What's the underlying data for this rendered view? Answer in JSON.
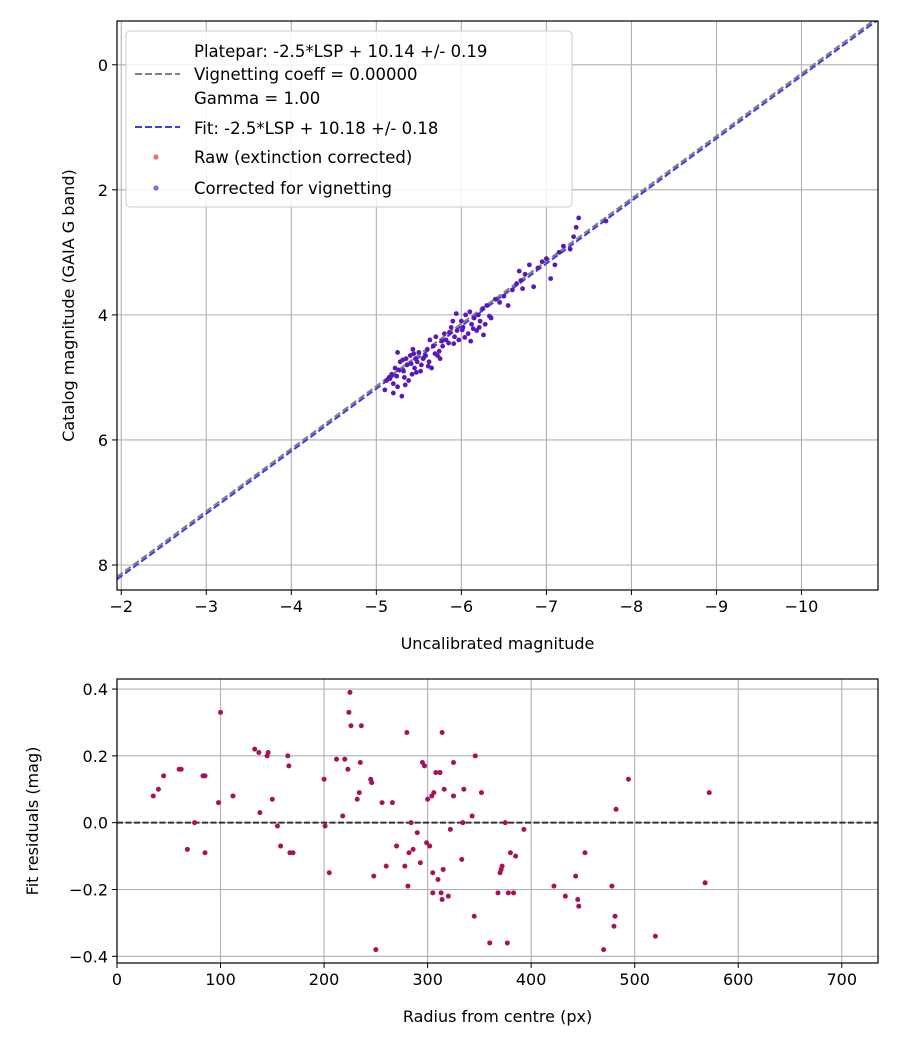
{
  "chart_data": [
    {
      "type": "scatter",
      "xlabel": "Uncalibrated magnitude",
      "ylabel": "Catalog magnitude (GAIA G band)",
      "xlim": [
        -1.95,
        -10.9
      ],
      "ylim": [
        8.4,
        -0.7
      ],
      "x_inverted": true,
      "y_inverted": true,
      "grid": true,
      "legend_position": "top-left",
      "xticks": [
        -2,
        -3,
        -4,
        -5,
        -6,
        -7,
        -8,
        -9,
        -10
      ],
      "xtick_labels": [
        "−2",
        "−3",
        "−4",
        "−5",
        "−6",
        "−7",
        "−8",
        "−9",
        "−10"
      ],
      "yticks": [
        0,
        2,
        4,
        6,
        8
      ],
      "ytick_labels": [
        "0",
        "2",
        "4",
        "6",
        "8"
      ],
      "lines": [
        {
          "name": "Platepar: -2.5*LSP + 10.14 +/- 0.19",
          "extra_legend_lines": [
            "Vignetting coeff = 0.00000",
            "Gamma = 1.00"
          ],
          "style": "dashed",
          "color": "#808080",
          "slope": 1.0,
          "intercept": 10.14
        },
        {
          "name": "Fit: -2.5*LSP + 10.18 +/- 0.18",
          "style": "dashed",
          "color": "#3c3cf0",
          "slope": 1.0,
          "intercept": 10.18
        }
      ],
      "series": [
        {
          "name": "Raw (extinction corrected)",
          "color": "#f07070",
          "points": []
        },
        {
          "name": "Corrected for vignetting",
          "color": "#7070f0",
          "overlap_color": "#5a18b8",
          "points": [
            [
              -5.1,
              5.2
            ],
            [
              -5.12,
              5.05
            ],
            [
              -5.15,
              5.0
            ],
            [
              -5.18,
              4.95
            ],
            [
              -5.2,
              5.1
            ],
            [
              -5.22,
              4.85
            ],
            [
              -5.25,
              5.15
            ],
            [
              -5.25,
              4.6
            ],
            [
              -5.28,
              4.75
            ],
            [
              -5.3,
              5.3
            ],
            [
              -5.32,
              4.9
            ],
            [
              -5.33,
              5.0
            ],
            [
              -5.35,
              4.7
            ],
            [
              -5.36,
              4.8
            ],
            [
              -5.38,
              5.05
            ],
            [
              -5.4,
              4.65
            ],
            [
              -5.42,
              4.95
            ],
            [
              -5.43,
              4.55
            ],
            [
              -5.45,
              4.85
            ],
            [
              -5.46,
              4.7
            ],
            [
              -5.48,
              4.75
            ],
            [
              -5.5,
              4.6
            ],
            [
              -5.52,
              4.9
            ],
            [
              -5.53,
              4.8
            ],
            [
              -5.55,
              4.7
            ],
            [
              -5.58,
              4.65
            ],
            [
              -5.6,
              4.55
            ],
            [
              -5.62,
              4.75
            ],
            [
              -5.63,
              4.4
            ],
            [
              -5.65,
              4.85
            ],
            [
              -5.67,
              4.5
            ],
            [
              -5.7,
              4.35
            ],
            [
              -5.72,
              4.65
            ],
            [
              -5.75,
              4.7
            ],
            [
              -5.78,
              4.5
            ],
            [
              -5.8,
              4.3
            ],
            [
              -5.82,
              4.4
            ],
            [
              -5.85,
              4.45
            ],
            [
              -5.88,
              4.2
            ],
            [
              -5.9,
              4.1
            ],
            [
              -5.92,
              4.35
            ],
            [
              -5.95,
              4.25
            ],
            [
              -5.97,
              4.4
            ],
            [
              -6.0,
              4.1
            ],
            [
              -6.02,
              4.2
            ],
            [
              -6.05,
              4.0
            ],
            [
              -6.08,
              4.3
            ],
            [
              -6.1,
              3.95
            ],
            [
              -6.12,
              4.15
            ],
            [
              -6.15,
              4.05
            ],
            [
              -6.18,
              4.25
            ],
            [
              -6.2,
              4.0
            ],
            [
              -6.22,
              4.1
            ],
            [
              -6.25,
              3.9
            ],
            [
              -6.28,
              4.15
            ],
            [
              -6.3,
              3.85
            ],
            [
              -6.35,
              4.05
            ],
            [
              -6.4,
              3.75
            ],
            [
              -6.5,
              3.7
            ],
            [
              -6.55,
              3.85
            ],
            [
              -6.6,
              3.6
            ],
            [
              -6.65,
              3.5
            ],
            [
              -6.68,
              3.3
            ],
            [
              -6.7,
              3.45
            ],
            [
              -6.75,
              3.35
            ],
            [
              -6.8,
              3.2
            ],
            [
              -6.85,
              3.55
            ],
            [
              -6.9,
              3.25
            ],
            [
              -6.95,
              3.15
            ],
            [
              -7.0,
              3.1
            ],
            [
              -7.1,
              3.2
            ],
            [
              -7.15,
              3.0
            ],
            [
              -7.2,
              2.9
            ],
            [
              -7.28,
              2.95
            ],
            [
              -7.32,
              2.75
            ],
            [
              -7.35,
              2.6
            ],
            [
              -7.38,
              2.45
            ],
            [
              -7.7,
              2.5
            ],
            [
              -5.2,
              5.25
            ],
            [
              -5.26,
              4.88
            ],
            [
              -5.34,
              5.12
            ],
            [
              -5.41,
              4.78
            ],
            [
              -5.44,
              4.62
            ],
            [
              -5.56,
              4.68
            ],
            [
              -5.61,
              4.82
            ],
            [
              -5.74,
              4.58
            ],
            [
              -5.86,
              4.28
            ],
            [
              -5.94,
              3.98
            ],
            [
              -6.04,
              4.36
            ],
            [
              -6.14,
              4.22
            ],
            [
              -6.26,
              4.32
            ],
            [
              -6.33,
              4.02
            ],
            [
              -6.45,
              3.8
            ],
            [
              -6.72,
              3.58
            ],
            [
              -7.05,
              3.42
            ],
            [
              -5.16,
              5.02
            ],
            [
              -5.24,
              4.98
            ],
            [
              -5.31,
              4.72
            ],
            [
              -5.47,
              4.92
            ],
            [
              -5.69,
              4.62
            ],
            [
              -5.77,
              4.42
            ],
            [
              -5.91,
              4.46
            ],
            [
              -6.01,
              4.24
            ],
            [
              -6.11,
              4.42
            ],
            [
              -6.21,
              4.2
            ]
          ]
        }
      ]
    },
    {
      "type": "scatter",
      "xlabel": "Radius from centre (px)",
      "ylabel": "Fit residuals (mag)",
      "xlim": [
        0,
        735
      ],
      "ylim": [
        -0.42,
        0.43
      ],
      "grid": true,
      "xticks": [
        0,
        100,
        200,
        300,
        400,
        500,
        600,
        700
      ],
      "xtick_labels": [
        "0",
        "100",
        "200",
        "300",
        "400",
        "500",
        "600",
        "700"
      ],
      "yticks": [
        -0.4,
        -0.2,
        0.0,
        0.2,
        0.4
      ],
      "ytick_labels": [
        "−0.4",
        "−0.2",
        "0.0",
        "0.2",
        "0.4"
      ],
      "reference_line": {
        "y": 0.0,
        "style": "dashed",
        "color": "#333333"
      },
      "point_color": "#a8105a",
      "points": [
        [
          35,
          0.08
        ],
        [
          40,
          0.1
        ],
        [
          45,
          0.14
        ],
        [
          60,
          0.16
        ],
        [
          62,
          0.16
        ],
        [
          68,
          -0.08
        ],
        [
          75,
          0.0
        ],
        [
          83,
          0.14
        ],
        [
          85,
          0.14
        ],
        [
          85,
          -0.09
        ],
        [
          98,
          0.06
        ],
        [
          100,
          0.33
        ],
        [
          112,
          0.08
        ],
        [
          133,
          0.22
        ],
        [
          137,
          0.21
        ],
        [
          138,
          0.03
        ],
        [
          145,
          0.2
        ],
        [
          146,
          0.21
        ],
        [
          150,
          0.07
        ],
        [
          155,
          -0.01
        ],
        [
          158,
          -0.07
        ],
        [
          165,
          0.2
        ],
        [
          166,
          0.17
        ],
        [
          167,
          -0.09
        ],
        [
          170,
          -0.09
        ],
        [
          200,
          0.13
        ],
        [
          201,
          -0.01
        ],
        [
          205,
          -0.15
        ],
        [
          212,
          0.19
        ],
        [
          218,
          0.02
        ],
        [
          220,
          0.19
        ],
        [
          223,
          0.16
        ],
        [
          224,
          0.33
        ],
        [
          225,
          0.39
        ],
        [
          226,
          0.29
        ],
        [
          232,
          0.07
        ],
        [
          234,
          0.09
        ],
        [
          235,
          0.18
        ],
        [
          236,
          0.29
        ],
        [
          245,
          0.13
        ],
        [
          246,
          0.12
        ],
        [
          248,
          -0.16
        ],
        [
          250,
          -0.38
        ],
        [
          256,
          0.06
        ],
        [
          260,
          -0.13
        ],
        [
          266,
          0.06
        ],
        [
          270,
          -0.07
        ],
        [
          278,
          -0.13
        ],
        [
          280,
          0.27
        ],
        [
          281,
          -0.19
        ],
        [
          282,
          -0.09
        ],
        [
          284,
          0.0
        ],
        [
          286,
          -0.08
        ],
        [
          290,
          -0.03
        ],
        [
          293,
          -0.12
        ],
        [
          295,
          0.18
        ],
        [
          297,
          0.17
        ],
        [
          299,
          -0.06
        ],
        [
          300,
          0.07
        ],
        [
          302,
          -0.07
        ],
        [
          304,
          0.08
        ],
        [
          305,
          -0.15
        ],
        [
          305,
          -0.21
        ],
        [
          306,
          0.09
        ],
        [
          308,
          0.15
        ],
        [
          310,
          -0.17
        ],
        [
          312,
          0.15
        ],
        [
          313,
          -0.21
        ],
        [
          314,
          0.27
        ],
        [
          314,
          -0.23
        ],
        [
          315,
          -0.14
        ],
        [
          316,
          0.1
        ],
        [
          320,
          -0.22
        ],
        [
          322,
          -0.02
        ],
        [
          325,
          0.18
        ],
        [
          325,
          0.08
        ],
        [
          333,
          -0.11
        ],
        [
          334,
          0.0
        ],
        [
          335,
          0.1
        ],
        [
          343,
          0.02
        ],
        [
          345,
          -0.28
        ],
        [
          346,
          0.2
        ],
        [
          352,
          0.09
        ],
        [
          360,
          -0.36
        ],
        [
          368,
          -0.21
        ],
        [
          370,
          -0.15
        ],
        [
          371,
          -0.14
        ],
        [
          372,
          -0.13
        ],
        [
          375,
          0.0
        ],
        [
          377,
          -0.36
        ],
        [
          378,
          -0.21
        ],
        [
          380,
          -0.09
        ],
        [
          383,
          -0.21
        ],
        [
          385,
          -0.1
        ],
        [
          393,
          -0.02
        ],
        [
          422,
          -0.19
        ],
        [
          433,
          -0.22
        ],
        [
          443,
          -0.16
        ],
        [
          445,
          -0.23
        ],
        [
          446,
          -0.25
        ],
        [
          452,
          -0.09
        ],
        [
          470,
          -0.38
        ],
        [
          478,
          -0.19
        ],
        [
          480,
          -0.31
        ],
        [
          481,
          -0.28
        ],
        [
          482,
          0.04
        ],
        [
          494,
          0.13
        ],
        [
          520,
          -0.34
        ],
        [
          568,
          -0.18
        ],
        [
          572,
          0.09
        ]
      ]
    }
  ]
}
